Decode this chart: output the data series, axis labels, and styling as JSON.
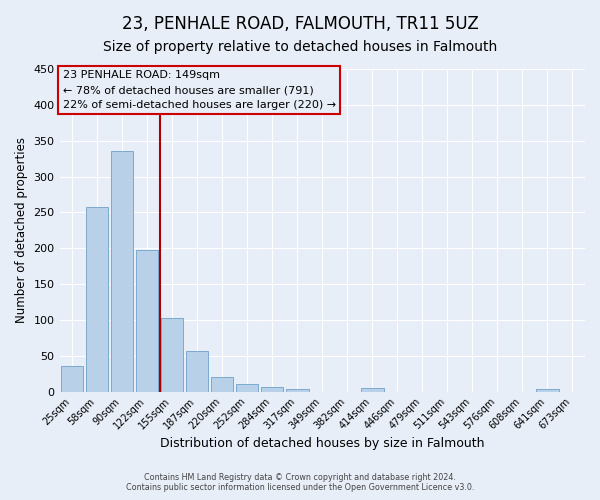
{
  "title": "23, PENHALE ROAD, FALMOUTH, TR11 5UZ",
  "subtitle": "Size of property relative to detached houses in Falmouth",
  "xlabel": "Distribution of detached houses by size in Falmouth",
  "ylabel": "Number of detached properties",
  "bar_labels": [
    "25sqm",
    "58sqm",
    "90sqm",
    "122sqm",
    "155sqm",
    "187sqm",
    "220sqm",
    "252sqm",
    "284sqm",
    "317sqm",
    "349sqm",
    "382sqm",
    "414sqm",
    "446sqm",
    "479sqm",
    "511sqm",
    "543sqm",
    "576sqm",
    "608sqm",
    "641sqm",
    "673sqm"
  ],
  "bar_values": [
    36,
    257,
    336,
    197,
    103,
    57,
    20,
    11,
    6,
    4,
    0,
    0,
    5,
    0,
    0,
    0,
    0,
    0,
    0,
    4,
    0
  ],
  "bar_color": "#b8d0e8",
  "bar_edge_color": "#7aaace",
  "ylim": [
    0,
    450
  ],
  "yticks": [
    0,
    50,
    100,
    150,
    200,
    250,
    300,
    350,
    400,
    450
  ],
  "vline_color": "#aa0000",
  "annotation_title": "23 PENHALE ROAD: 149sqm",
  "annotation_line1": "← 78% of detached houses are smaller (791)",
  "annotation_line2": "22% of semi-detached houses are larger (220) →",
  "annotation_box_color": "#cc0000",
  "footer_line1": "Contains HM Land Registry data © Crown copyright and database right 2024.",
  "footer_line2": "Contains public sector information licensed under the Open Government Licence v3.0.",
  "background_color": "#e8eef8",
  "grid_color": "#ffffff",
  "title_fontsize": 12,
  "subtitle_fontsize": 10
}
